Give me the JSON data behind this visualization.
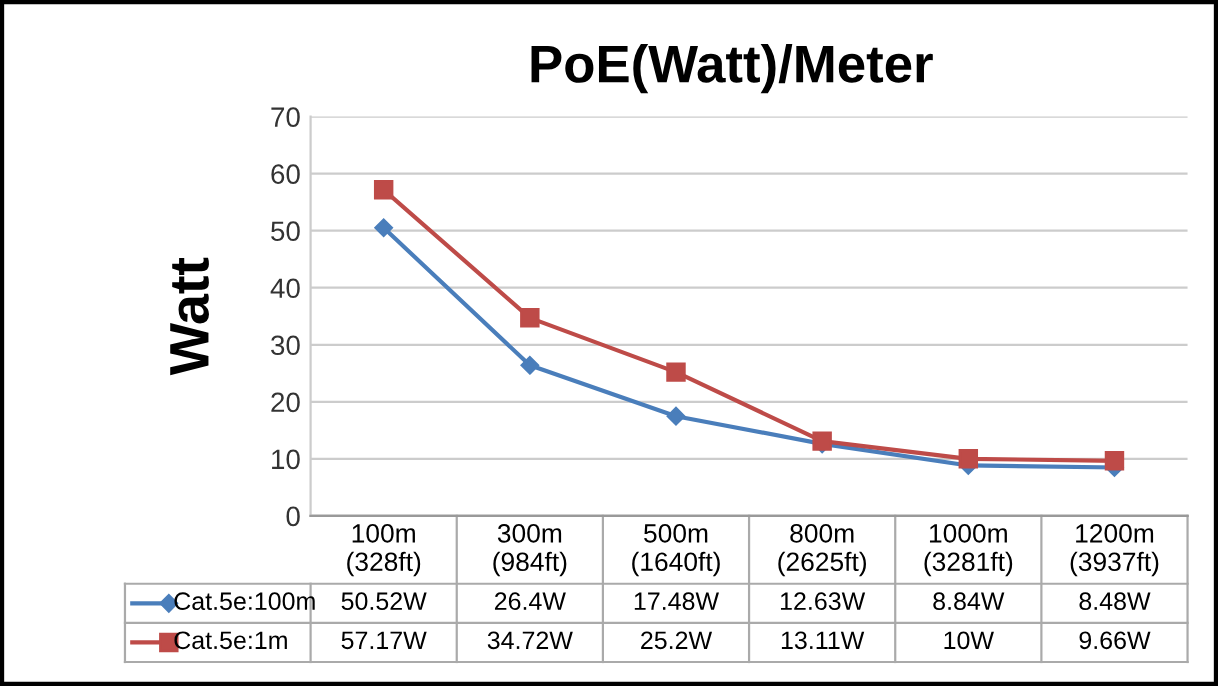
{
  "chart_data": {
    "type": "line",
    "title": "PoE(Watt)/Meter",
    "ylabel": "Watt",
    "categories": [
      "100m\n(328ft)",
      "300m\n(984ft)",
      "500m\n(1640ft)",
      "800m\n(2625ft)",
      "1000m\n(3281ft)",
      "1200m\n(3937ft)"
    ],
    "series": [
      {
        "name": "Cat.5e:100m",
        "color": "#4a7ebb",
        "marker": "diamond",
        "values": [
          50.52,
          26.4,
          17.48,
          12.63,
          8.84,
          8.48
        ],
        "value_labels": [
          "50.52W",
          "26.4W",
          "17.48W",
          "12.63W",
          "8.84W",
          "8.48W"
        ]
      },
      {
        "name": "Cat.5e:1m",
        "color": "#be4b48",
        "marker": "square",
        "values": [
          57.17,
          34.72,
          25.2,
          13.11,
          10,
          9.66
        ],
        "value_labels": [
          "57.17W",
          "34.72W",
          "25.2W",
          "13.11W",
          "10W",
          "9.66W"
        ]
      }
    ],
    "ylim": [
      0,
      70
    ],
    "yticks": [
      0,
      10,
      20,
      30,
      40,
      50,
      60,
      70
    ],
    "grid": "y",
    "legend": "bottom"
  }
}
